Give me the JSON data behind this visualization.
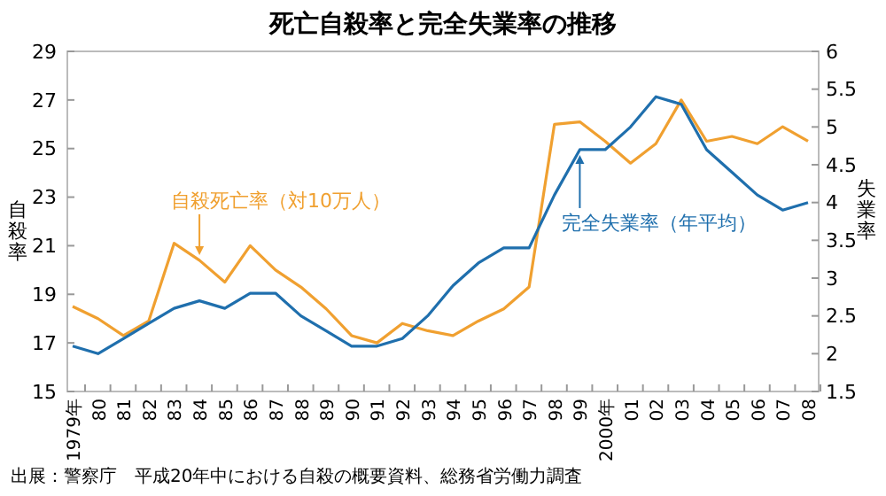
{
  "chart_data": {
    "type": "line",
    "title": "死亡自殺率と完全失業率の推移",
    "ylabel": "自殺率",
    "y2label": "失業率",
    "categories": [
      "1979年",
      "80",
      "81",
      "82",
      "83",
      "84",
      "85",
      "86",
      "87",
      "88",
      "89",
      "90",
      "91",
      "92",
      "93",
      "94",
      "95",
      "96",
      "97",
      "98",
      "99",
      "2000年",
      "01",
      "02",
      "03",
      "04",
      "05",
      "06",
      "07",
      "08"
    ],
    "series": [
      {
        "name": "自殺死亡率（対10万人）",
        "color": "#f0a030",
        "values": [
          18.5,
          18.0,
          17.3,
          17.9,
          21.1,
          20.4,
          19.5,
          21.0,
          20.0,
          19.3,
          18.4,
          17.3,
          17.0,
          17.8,
          17.5,
          17.3,
          17.9,
          18.4,
          19.3,
          26.0,
          26.1,
          25.3,
          24.4,
          25.2,
          27.0,
          25.3,
          25.5,
          25.2,
          25.9,
          25.3
        ]
      },
      {
        "name": "完全失業率（年平均）",
        "color": "#1f6fad",
        "axis": "y2",
        "values": [
          2.1,
          2.0,
          2.2,
          2.4,
          2.6,
          2.7,
          2.6,
          2.8,
          2.8,
          2.5,
          2.3,
          2.1,
          2.1,
          2.2,
          2.5,
          2.9,
          3.2,
          3.4,
          3.4,
          4.1,
          4.7,
          4.7,
          5.0,
          5.4,
          5.3,
          4.7,
          4.4,
          4.1,
          3.9,
          4.0
        ]
      }
    ],
    "ylim": [
      15,
      29
    ],
    "yticks": [
      15,
      17,
      19,
      21,
      23,
      25,
      27,
      29
    ],
    "y2lim": [
      1.5,
      6
    ],
    "y2ticks": [
      1.5,
      2,
      2.5,
      3,
      3.5,
      4,
      4.5,
      5,
      5.5,
      6
    ],
    "annotations": [
      "出展：警察庁　平成20年中における自殺の概要資料、総務省労働力調査"
    ]
  }
}
